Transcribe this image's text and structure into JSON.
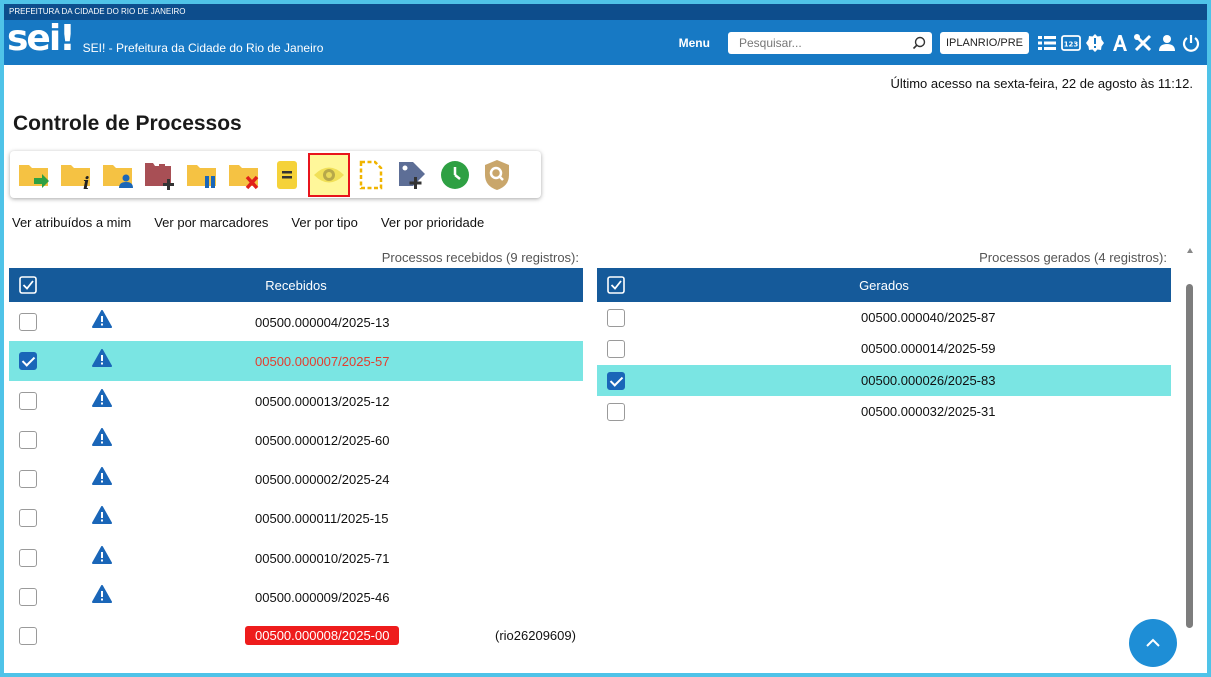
{
  "gov_bar": {
    "text": "PREFEITURA DA CIDADE DO RIO DE JANEIRO"
  },
  "header": {
    "logo_text": "sei",
    "logo_mark": "!",
    "app_title": "SEI! - Prefeitura da Cidade do Rio de Janeiro",
    "menu_label": "Menu",
    "search_placeholder": "Pesquisar...",
    "unit_label": "IPLANRIO/PRE",
    "icons": [
      "list-icon",
      "numeric-icon",
      "alert-badge-icon",
      "font-size-icon",
      "tools-icon",
      "user-icon",
      "power-icon"
    ]
  },
  "last_access": "Último acesso na sexta-feira, 22 de agosto às 11:12.",
  "page_title": "Controle de Processos",
  "toolbar": {
    "buttons": [
      {
        "name": "send-process",
        "icon": "folder-arrow-icon"
      },
      {
        "name": "process-info",
        "icon": "folder-info-icon"
      },
      {
        "name": "assign-process",
        "icon": "folder-user-icon"
      },
      {
        "name": "add-to-block",
        "icon": "folder-plus-icon"
      },
      {
        "name": "suspend-process",
        "icon": "folder-pause-icon"
      },
      {
        "name": "close-process",
        "icon": "folder-x-icon"
      },
      {
        "name": "annotation",
        "icon": "note-icon"
      },
      {
        "name": "mark-as-viewed",
        "icon": "eye-icon",
        "highlighted": true
      },
      {
        "name": "new-document",
        "icon": "dashed-document-icon"
      },
      {
        "name": "add-marker",
        "icon": "tag-plus-icon"
      },
      {
        "name": "deadline-control",
        "icon": "clock-icon"
      },
      {
        "name": "search-process",
        "icon": "shield-search-icon"
      }
    ]
  },
  "views": [
    "Ver atribuídos a mim",
    "Ver por marcadores",
    "Ver por tipo",
    "Ver por prioridade"
  ],
  "received": {
    "caption": "Processos recebidos (9 registros):",
    "header": "Recebidos",
    "rows": [
      {
        "number": "00500.000004/2025-13",
        "checked": false,
        "warning": true,
        "style": "normal",
        "assignee": ""
      },
      {
        "number": "00500.000007/2025-57",
        "checked": true,
        "warning": true,
        "style": "red-text",
        "assignee": ""
      },
      {
        "number": "00500.000013/2025-12",
        "checked": false,
        "warning": true,
        "style": "normal",
        "assignee": ""
      },
      {
        "number": "00500.000012/2025-60",
        "checked": false,
        "warning": true,
        "style": "normal",
        "assignee": ""
      },
      {
        "number": "00500.000002/2025-24",
        "checked": false,
        "warning": true,
        "style": "normal",
        "assignee": ""
      },
      {
        "number": "00500.000011/2025-15",
        "checked": false,
        "warning": true,
        "style": "normal",
        "assignee": ""
      },
      {
        "number": "00500.000010/2025-71",
        "checked": false,
        "warning": true,
        "style": "normal",
        "assignee": ""
      },
      {
        "number": "00500.000009/2025-46",
        "checked": false,
        "warning": true,
        "style": "normal",
        "assignee": ""
      },
      {
        "number": "00500.000008/2025-00",
        "checked": false,
        "warning": false,
        "style": "red-badge",
        "assignee": "(rio26209609)"
      }
    ]
  },
  "generated": {
    "caption": "Processos gerados (4 registros):",
    "header": "Gerados",
    "rows": [
      {
        "number": "00500.000040/2025-87",
        "checked": false
      },
      {
        "number": "00500.000014/2025-59",
        "checked": false
      },
      {
        "number": "00500.000026/2025-83",
        "checked": true
      },
      {
        "number": "00500.000032/2025-31",
        "checked": false
      }
    ]
  },
  "colors": {
    "header_blue": "#1779c4",
    "gov_bar_blue": "#0d4d8c",
    "table_header": "#155a9a",
    "selected_row": "#7ae5e3",
    "folder_yellow": "#f5c243",
    "badge_red": "#ee1c1c"
  }
}
